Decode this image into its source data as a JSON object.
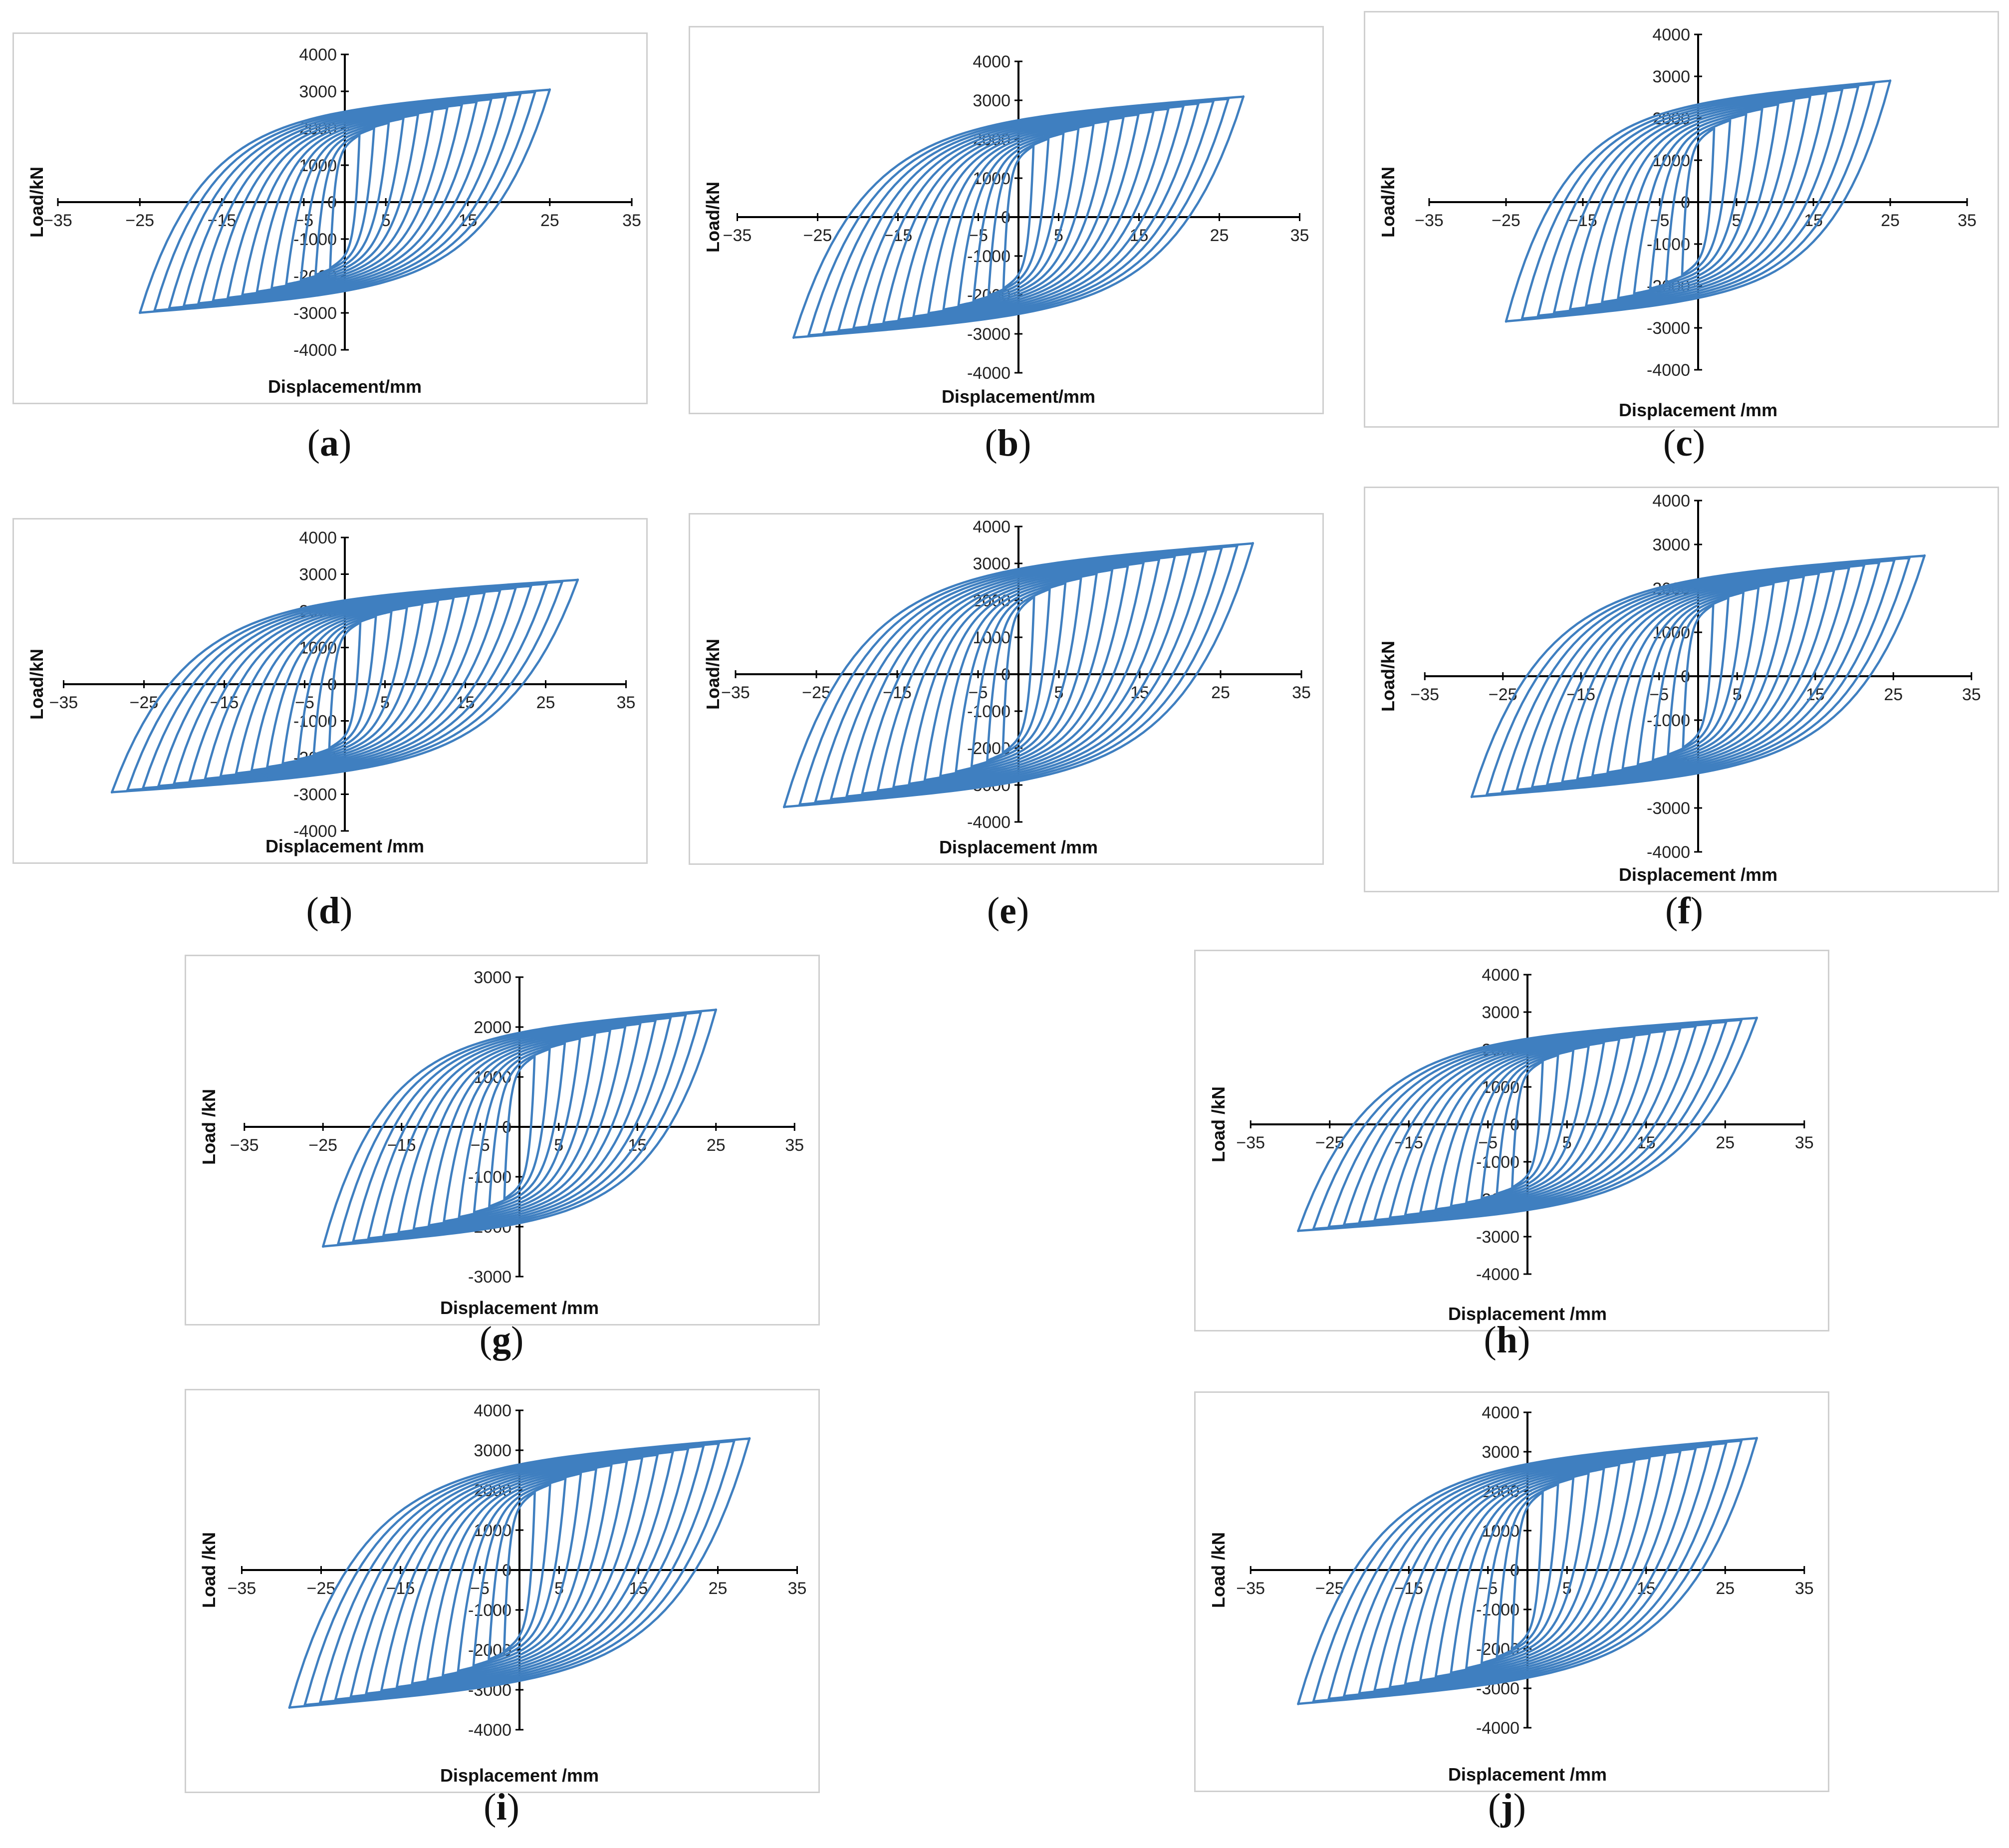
{
  "figure": {
    "line_color": "#3f7fc0",
    "axis_color": "#000000",
    "frame_color": "#cfcfcf"
  },
  "chart_data": [
    {
      "label": "a",
      "type": "line",
      "xlabel": "Displacement/mm",
      "ylabel": "Load/kN",
      "xlim": [
        -35,
        35
      ],
      "ylim": [
        -4000,
        4000
      ],
      "xticks": [
        -35,
        -25,
        -15,
        -5,
        5,
        15,
        25,
        35
      ],
      "yticks": [
        -4000,
        -3000,
        -2000,
        -1000,
        0,
        1000,
        2000,
        3000,
        4000
      ],
      "series": [
        {
          "max_displacement": 25,
          "peak_load_pos": 3050,
          "peak_load_neg": -3000,
          "cycles": 14
        }
      ]
    },
    {
      "label": "b",
      "type": "line",
      "xlabel": "Displacement/mm",
      "ylabel": "Load/kN",
      "xlim": [
        -35,
        35
      ],
      "ylim": [
        -4000,
        4000
      ],
      "xticks": [
        -35,
        -25,
        -15,
        -5,
        5,
        15,
        25,
        35
      ],
      "yticks": [
        -4000,
        -3000,
        -2000,
        -1000,
        0,
        1000,
        2000,
        3000,
        4000
      ],
      "series": [
        {
          "max_displacement": 28,
          "peak_load_pos": 3100,
          "peak_load_neg": -3100,
          "cycles": 15
        }
      ]
    },
    {
      "label": "c",
      "type": "line",
      "xlabel": "Displacement /mm",
      "ylabel": "Load/kN",
      "xlim": [
        -35,
        35
      ],
      "ylim": [
        -4000,
        4000
      ],
      "xticks": [
        -35,
        -25,
        -15,
        -5,
        5,
        15,
        25,
        35
      ],
      "yticks": [
        -4000,
        -3000,
        -2000,
        -1000,
        0,
        1000,
        2000,
        3000,
        4000
      ],
      "series": [
        {
          "max_displacement": 25,
          "peak_load_pos": 2900,
          "peak_load_neg": -2850,
          "cycles": 12
        }
      ]
    },
    {
      "label": "d",
      "type": "line",
      "xlabel": "Displacement /mm",
      "ylabel": "Load/kN",
      "xlim": [
        -35,
        35
      ],
      "ylim": [
        -4000,
        4000
      ],
      "xticks": [
        -35,
        -25,
        -15,
        -5,
        5,
        15,
        25,
        35
      ],
      "yticks": [
        -4000,
        -3000,
        -2000,
        -1000,
        0,
        1000,
        2000,
        3000,
        4000
      ],
      "series": [
        {
          "max_displacement": 29,
          "peak_load_pos": 2850,
          "peak_load_neg": -2950,
          "cycles": 15
        }
      ]
    },
    {
      "label": "e",
      "type": "line",
      "xlabel": "Displacement /mm",
      "ylabel": "Load/kN",
      "xlim": [
        -35,
        35
      ],
      "ylim": [
        -4000,
        4000
      ],
      "xticks": [
        -35,
        -25,
        -15,
        -5,
        5,
        15,
        25,
        35
      ],
      "yticks": [
        -4000,
        -3000,
        -2000,
        -1000,
        0,
        1000,
        2000,
        3000,
        4000
      ],
      "series": [
        {
          "max_displacement": 29,
          "peak_load_pos": 3550,
          "peak_load_neg": -3600,
          "cycles": 15
        }
      ]
    },
    {
      "label": "f",
      "type": "line",
      "xlabel": "Displacement /mm",
      "ylabel": "Load/kN",
      "xlim": [
        -35,
        35
      ],
      "ylim": [
        -4000,
        4000
      ],
      "xticks": [
        -35,
        -25,
        -15,
        -5,
        5,
        15,
        25,
        35
      ],
      "yticks": [
        -4000,
        -3000,
        -2000,
        -1000,
        0,
        1000,
        2000,
        3000,
        4000
      ],
      "series": [
        {
          "max_displacement": 29,
          "peak_load_pos": 2750,
          "peak_load_neg": -2750,
          "cycles": 15
        }
      ]
    },
    {
      "label": "g",
      "type": "line",
      "xlabel": "Displacement /mm",
      "ylabel": "Load /kN",
      "xlim": [
        -35,
        35
      ],
      "ylim": [
        -3000,
        3000
      ],
      "xticks": [
        -35,
        -25,
        -15,
        -5,
        5,
        15,
        25,
        35
      ],
      "yticks": [
        -3000,
        -2000,
        -1000,
        0,
        1000,
        2000,
        3000
      ],
      "series": [
        {
          "max_displacement": 25,
          "peak_load_pos": 2350,
          "peak_load_neg": -2400,
          "cycles": 13
        }
      ]
    },
    {
      "label": "h",
      "type": "line",
      "xlabel": "Displacement /mm",
      "ylabel": "Load /kN",
      "xlim": [
        -35,
        35
      ],
      "ylim": [
        -4000,
        4000
      ],
      "xticks": [
        -35,
        -25,
        -15,
        -5,
        5,
        15,
        25,
        35
      ],
      "yticks": [
        -4000,
        -3000,
        -2000,
        -1000,
        0,
        1000,
        2000,
        3000,
        4000
      ],
      "series": [
        {
          "max_displacement": 29,
          "peak_load_pos": 2850,
          "peak_load_neg": -2850,
          "cycles": 15
        }
      ]
    },
    {
      "label": "i",
      "type": "line",
      "xlabel": "Displacement /mm",
      "ylabel": "Load /kN",
      "xlim": [
        -35,
        35
      ],
      "ylim": [
        -4000,
        4000
      ],
      "xticks": [
        -35,
        -25,
        -15,
        -5,
        5,
        15,
        25,
        35
      ],
      "yticks": [
        -4000,
        -3000,
        -2000,
        -1000,
        0,
        1000,
        2000,
        3000,
        4000
      ],
      "series": [
        {
          "max_displacement": 29,
          "peak_load_pos": 3300,
          "peak_load_neg": -3450,
          "cycles": 15
        }
      ]
    },
    {
      "label": "j",
      "type": "line",
      "xlabel": "Displacement /mm",
      "ylabel": "Load /kN",
      "xlim": [
        -35,
        35
      ],
      "ylim": [
        -4000,
        4000
      ],
      "xticks": [
        -35,
        -25,
        -15,
        -5,
        5,
        15,
        25,
        35
      ],
      "yticks": [
        -4000,
        -3000,
        -2000,
        -1000,
        0,
        1000,
        2000,
        3000,
        4000
      ],
      "series": [
        {
          "max_displacement": 29,
          "peak_load_pos": 3350,
          "peak_load_neg": -3400,
          "cycles": 15
        }
      ]
    }
  ]
}
